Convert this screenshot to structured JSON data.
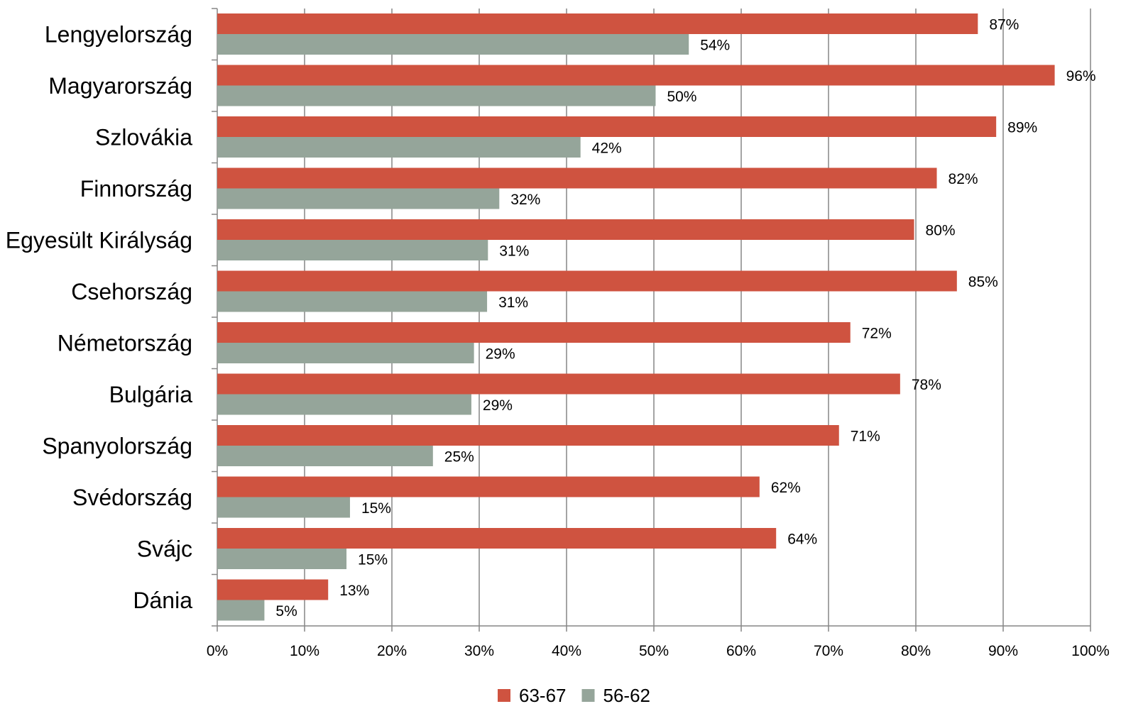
{
  "chart_data": {
    "type": "bar",
    "orientation": "horizontal",
    "title": "",
    "xlabel": "",
    "ylabel": "",
    "xlim": [
      0,
      100
    ],
    "x_ticks": [
      0,
      10,
      20,
      30,
      40,
      50,
      60,
      70,
      80,
      90,
      100
    ],
    "x_tick_labels": [
      "0%",
      "10%",
      "20%",
      "30%",
      "40%",
      "50%",
      "60%",
      "70%",
      "80%",
      "90%",
      "100%"
    ],
    "grid": true,
    "legend_position": "bottom",
    "categories": [
      "Lengyelország",
      "Magyarország",
      "Szlovákia",
      "Finnország",
      "Egyesült Királyság",
      "Csehország",
      "Németország",
      "Bulgária",
      "Spanyolország",
      "Svédország",
      "Svájc",
      "Dánia"
    ],
    "series": [
      {
        "name": "63-67",
        "color": "#cf5340",
        "values": [
          87.1,
          95.9,
          89.2,
          82.4,
          79.8,
          84.7,
          72.5,
          78.2,
          71.2,
          62.1,
          64.0,
          12.7
        ],
        "labels": [
          "87%",
          "96%",
          "89%",
          "82%",
          "80%",
          "85%",
          "72%",
          "78%",
          "71%",
          "62%",
          "64%",
          "13%"
        ]
      },
      {
        "name": "56-62",
        "color": "#95a59a",
        "values": [
          54.0,
          50.2,
          41.6,
          32.3,
          31.0,
          30.9,
          29.4,
          29.1,
          24.7,
          15.2,
          14.8,
          5.4
        ],
        "labels": [
          "54%",
          "50%",
          "42%",
          "32%",
          "31%",
          "31%",
          "29%",
          "29%",
          "25%",
          "15%",
          "15%",
          "5%"
        ]
      }
    ]
  }
}
